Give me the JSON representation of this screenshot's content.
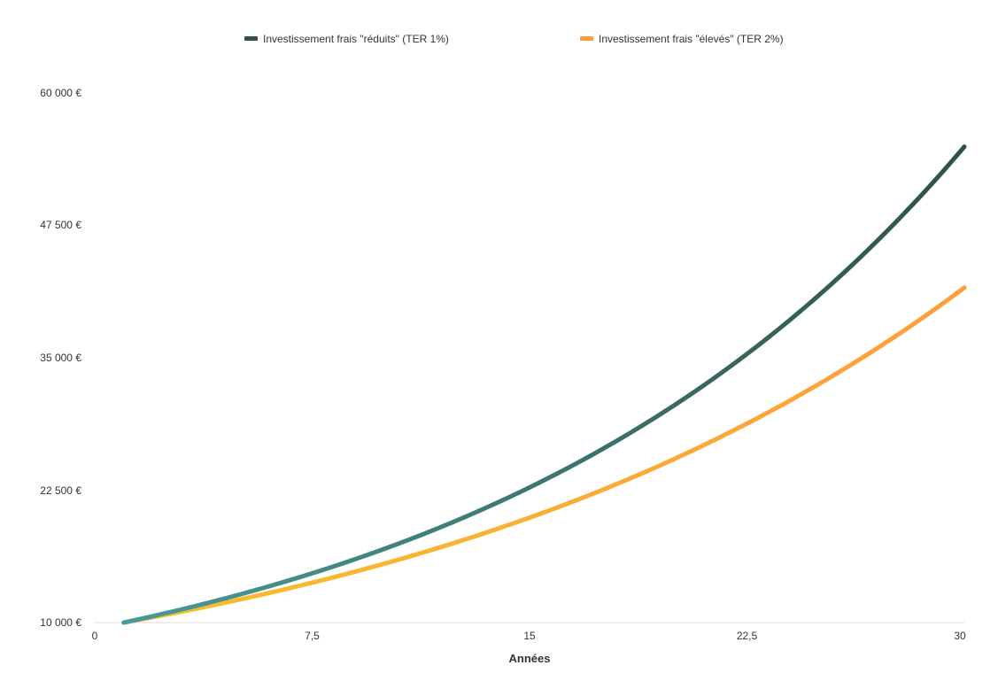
{
  "chart_data": {
    "type": "line",
    "title": "",
    "xlabel": "Années",
    "ylabel": "",
    "xlim": [
      0,
      30
    ],
    "ylim": [
      10000,
      60000
    ],
    "x_ticks": [
      0,
      7.5,
      15,
      22.5,
      30
    ],
    "x_tick_labels": [
      "0",
      "7,5",
      "15",
      "22,5",
      "30"
    ],
    "y_ticks": [
      10000,
      22500,
      35000,
      47500,
      60000
    ],
    "y_tick_labels": [
      "10 000 €",
      "22 500 €",
      "35 000 €",
      "47 500 €",
      "60 000 €"
    ],
    "grid": false,
    "legend_position": "top",
    "series": [
      {
        "name": "Investissement frais \"réduits\" (TER 1%)",
        "color_start": "#4a9a9a",
        "color_end": "#2e5245",
        "x_start": 1,
        "x_end": 30,
        "y_start": 10000,
        "annual_growth": 0.0605,
        "y_end": 55000
      },
      {
        "name": "Investissement frais \"élevés\" (TER 2%)",
        "color_start": "#f5c02b",
        "color_end": "#ff9d3c",
        "x_start": 1,
        "x_end": 30,
        "y_start": 10000,
        "annual_growth": 0.0504,
        "y_end": 41500
      }
    ]
  }
}
